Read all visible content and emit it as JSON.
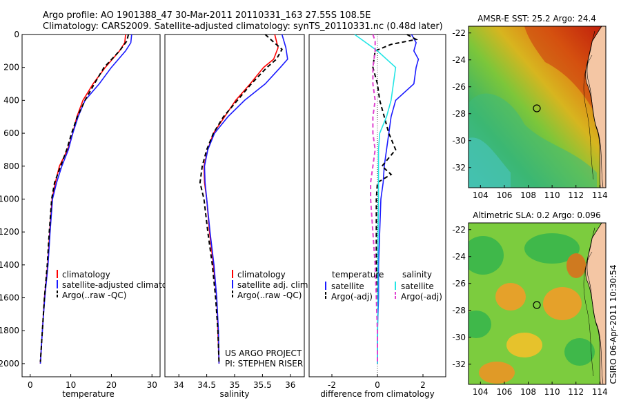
{
  "header": {
    "title_line1": "Argo profile: AO 1901388_47 30-Mar-2011 20110331_163 27.55S 108.5E",
    "title_line2": "Climatology: CARS2009. Satellite-adjusted climatology: synTS_20110331.nc (0.48d later)"
  },
  "footer": {
    "project_line1": "US ARGO PROJECT",
    "project_line2": "PI: STEPHEN RISER",
    "credit": "CSIRO 06-Apr-2011 10:30:54"
  },
  "colors": {
    "climatology": "#ff0000",
    "satellite": "#1a1aff",
    "argo": "#000000",
    "sal_satellite": "#22e5e5",
    "sal_argo": "#e040d0"
  },
  "chart_data": [
    {
      "type": "line",
      "xlabel": "temperature",
      "ylabel": "",
      "xlim": [
        -2,
        32
      ],
      "ylim": [
        2080,
        0
      ],
      "y_reversed": true,
      "xticks": [
        "0",
        "10",
        "20",
        "30"
      ],
      "yticks": [
        "0",
        "200",
        "400",
        "600",
        "800",
        "1000",
        "1200",
        "1400",
        "1600",
        "1800",
        "2000"
      ],
      "legend": [
        {
          "label": "climatology",
          "style": "solid",
          "color": "#ff0000"
        },
        {
          "label": "satellite-adjusted climatology",
          "style": "solid",
          "color": "#1a1aff"
        },
        {
          "label": "Argo(..raw -QC)",
          "style": "dashed",
          "color": "#000000"
        }
      ],
      "series": [
        {
          "name": "climatology",
          "points": [
            [
              23.5,
              0
            ],
            [
              23.3,
              50
            ],
            [
              22.0,
              100
            ],
            [
              18.5,
              200
            ],
            [
              15.5,
              300
            ],
            [
              13.0,
              400
            ],
            [
              11.5,
              500
            ],
            [
              10.5,
              600
            ],
            [
              9.2,
              700
            ],
            [
              7.2,
              800
            ],
            [
              6.2,
              900
            ],
            [
              5.4,
              1000
            ],
            [
              4.8,
              1200
            ],
            [
              4.3,
              1400
            ],
            [
              3.5,
              1600
            ],
            [
              3.0,
              1800
            ],
            [
              2.5,
              2000
            ]
          ]
        },
        {
          "name": "satellite-adjusted climatology",
          "points": [
            [
              25.0,
              0
            ],
            [
              24.8,
              50
            ],
            [
              23.5,
              100
            ],
            [
              20.0,
              200
            ],
            [
              17.0,
              300
            ],
            [
              13.5,
              400
            ],
            [
              11.8,
              500
            ],
            [
              10.5,
              600
            ],
            [
              9.4,
              700
            ],
            [
              7.8,
              800
            ],
            [
              6.5,
              900
            ],
            [
              5.5,
              1000
            ],
            [
              4.9,
              1200
            ],
            [
              4.4,
              1400
            ],
            [
              3.6,
              1600
            ],
            [
              3.0,
              1800
            ],
            [
              2.5,
              2000
            ]
          ]
        },
        {
          "name": "Argo(..raw -QC)",
          "points": [
            [
              24.2,
              0
            ],
            [
              23.8,
              40
            ],
            [
              22.0,
              100
            ],
            [
              18.2,
              200
            ],
            [
              15.8,
              300
            ],
            [
              13.5,
              400
            ],
            [
              11.6,
              500
            ],
            [
              10.2,
              600
            ],
            [
              9.0,
              700
            ],
            [
              7.5,
              800
            ],
            [
              6.0,
              900
            ],
            [
              5.3,
              1000
            ],
            [
              4.7,
              1200
            ],
            [
              4.2,
              1400
            ],
            [
              3.5,
              1600
            ],
            [
              3.0,
              1800
            ],
            [
              2.5,
              1990
            ]
          ]
        }
      ]
    },
    {
      "type": "line",
      "xlabel": "salinity",
      "xlim": [
        33.75,
        36.25
      ],
      "ylim": [
        2080,
        0
      ],
      "y_reversed": true,
      "xticks": [
        "34",
        "34.5",
        "35",
        "35.5",
        "36"
      ],
      "legend": [
        {
          "label": "climatology",
          "style": "solid",
          "color": "#ff0000"
        },
        {
          "label": "satellite adj. clim.",
          "style": "solid",
          "color": "#1a1aff"
        },
        {
          "label": "Argo(..raw -QC)",
          "style": "dashed",
          "color": "#000000"
        }
      ],
      "series": [
        {
          "name": "climatology",
          "points": [
            [
              35.72,
              0
            ],
            [
              35.78,
              80
            ],
            [
              35.7,
              150
            ],
            [
              35.52,
              200
            ],
            [
              35.28,
              300
            ],
            [
              35.02,
              400
            ],
            [
              34.82,
              500
            ],
            [
              34.62,
              600
            ],
            [
              34.52,
              700
            ],
            [
              34.45,
              800
            ],
            [
              34.46,
              900
            ],
            [
              34.5,
              1000
            ],
            [
              34.55,
              1200
            ],
            [
              34.62,
              1400
            ],
            [
              34.68,
              1600
            ],
            [
              34.7,
              1800
            ],
            [
              34.72,
              2000
            ]
          ]
        },
        {
          "name": "satellite adj. clim.",
          "points": [
            [
              35.85,
              0
            ],
            [
              35.92,
              80
            ],
            [
              35.95,
              150
            ],
            [
              35.82,
              200
            ],
            [
              35.55,
              300
            ],
            [
              35.18,
              400
            ],
            [
              34.88,
              500
            ],
            [
              34.64,
              600
            ],
            [
              34.52,
              700
            ],
            [
              34.46,
              800
            ],
            [
              34.47,
              900
            ],
            [
              34.5,
              1000
            ],
            [
              34.56,
              1200
            ],
            [
              34.63,
              1400
            ],
            [
              34.68,
              1600
            ],
            [
              34.71,
              1800
            ],
            [
              34.72,
              2000
            ]
          ]
        },
        {
          "name": "Argo(..raw -QC)",
          "points": [
            [
              35.55,
              0
            ],
            [
              35.68,
              40
            ],
            [
              35.85,
              90
            ],
            [
              35.75,
              150
            ],
            [
              35.58,
              200
            ],
            [
              35.3,
              300
            ],
            [
              35.05,
              400
            ],
            [
              34.8,
              500
            ],
            [
              34.62,
              600
            ],
            [
              34.5,
              700
            ],
            [
              34.42,
              800
            ],
            [
              34.38,
              900
            ],
            [
              34.45,
              1000
            ],
            [
              34.52,
              1200
            ],
            [
              34.6,
              1400
            ],
            [
              34.66,
              1600
            ],
            [
              34.7,
              1800
            ],
            [
              34.72,
              1990
            ]
          ]
        }
      ]
    },
    {
      "type": "line",
      "xlabel": "difference from climatology",
      "xlim": [
        -3,
        3
      ],
      "ylim": [
        2080,
        0
      ],
      "y_reversed": true,
      "xticks": [
        "-2",
        "0",
        "2"
      ],
      "legend_titles": [
        "temperature",
        "salinity"
      ],
      "legend": [
        {
          "label": "satellite",
          "style": "solid",
          "color": "#1a1aff"
        },
        {
          "label": "Argo(-adj)",
          "style": "dashed",
          "color": "#000000"
        },
        {
          "label": "satellite",
          "style": "solid",
          "color": "#22e5e5"
        },
        {
          "label": "Argo(-adj)",
          "style": "dashed",
          "color": "#e040d0"
        }
      ],
      "series": [
        {
          "name": "temperature satellite",
          "points": [
            [
              1.5,
              0
            ],
            [
              1.7,
              50
            ],
            [
              1.6,
              100
            ],
            [
              1.8,
              150
            ],
            [
              1.7,
              200
            ],
            [
              1.6,
              300
            ],
            [
              0.8,
              400
            ],
            [
              0.6,
              500
            ],
            [
              0.5,
              600
            ],
            [
              0.4,
              700
            ],
            [
              0.3,
              800
            ],
            [
              0.25,
              900
            ],
            [
              0.15,
              1000
            ],
            [
              0.1,
              1200
            ],
            [
              0.05,
              1400
            ],
            [
              0.05,
              1600
            ],
            [
              0.0,
              1800
            ],
            [
              0.0,
              2000
            ]
          ]
        },
        {
          "name": "temperature Argo(-adj)",
          "points": [
            [
              1.3,
              0
            ],
            [
              1.7,
              30
            ],
            [
              0.6,
              60
            ],
            [
              -0.1,
              100
            ],
            [
              -0.2,
              200
            ],
            [
              0.0,
              300
            ],
            [
              0.1,
              400
            ],
            [
              0.3,
              500
            ],
            [
              0.5,
              600
            ],
            [
              0.8,
              700
            ],
            [
              0.2,
              800
            ],
            [
              0.6,
              850
            ],
            [
              0.0,
              900
            ],
            [
              -0.05,
              1000
            ],
            [
              -0.05,
              1200
            ],
            [
              -0.05,
              1400
            ],
            [
              0.0,
              1600
            ],
            [
              0.0,
              1800
            ],
            [
              0.0,
              1990
            ]
          ]
        },
        {
          "name": "salinity satellite",
          "points": [
            [
              -1.0,
              0
            ],
            [
              -0.5,
              50
            ],
            [
              0.0,
              100
            ],
            [
              0.8,
              200
            ],
            [
              0.7,
              300
            ],
            [
              0.6,
              400
            ],
            [
              0.4,
              500
            ],
            [
              0.1,
              600
            ],
            [
              0.05,
              700
            ],
            [
              0.05,
              800
            ],
            [
              0.05,
              900
            ],
            [
              0.05,
              1000
            ],
            [
              0.03,
              1200
            ],
            [
              0.02,
              1400
            ],
            [
              0.02,
              1600
            ],
            [
              0.01,
              1800
            ],
            [
              0.0,
              2000
            ]
          ]
        },
        {
          "name": "salinity Argo(-adj)",
          "points": [
            [
              -0.2,
              0
            ],
            [
              -0.1,
              40
            ],
            [
              -0.1,
              100
            ],
            [
              -0.2,
              200
            ],
            [
              -0.2,
              300
            ],
            [
              -0.1,
              400
            ],
            [
              -0.2,
              500
            ],
            [
              -0.2,
              600
            ],
            [
              -0.1,
              700
            ],
            [
              -0.2,
              800
            ],
            [
              -0.3,
              900
            ],
            [
              -0.3,
              1000
            ],
            [
              -0.2,
              1200
            ],
            [
              -0.1,
              1400
            ],
            [
              -0.05,
              1600
            ],
            [
              0.0,
              1800
            ],
            [
              0.0,
              1990
            ]
          ]
        }
      ]
    },
    {
      "type": "heatmap",
      "title": "AMSR-E SST: 25.2 Argo: 24.4",
      "xlim": [
        103,
        114.5
      ],
      "ylim": [
        -33.5,
        -21.5
      ],
      "xticks": [
        "104",
        "106",
        "108",
        "110",
        "112",
        "114"
      ],
      "yticks": [
        "-22",
        "-24",
        "-26",
        "-28",
        "-30",
        "-32"
      ],
      "float_position": [
        108.5,
        -27.55
      ]
    },
    {
      "type": "heatmap",
      "title": "Altimetric SLA: 0.2 Argo: 0.096",
      "xlim": [
        103,
        114.5
      ],
      "ylim": [
        -33.5,
        -21.5
      ],
      "xticks": [
        "104",
        "106",
        "108",
        "110",
        "112",
        "114"
      ],
      "yticks": [
        "-22",
        "-24",
        "-26",
        "-28",
        "-30",
        "-32"
      ],
      "float_position": [
        108.5,
        -27.55
      ]
    }
  ]
}
